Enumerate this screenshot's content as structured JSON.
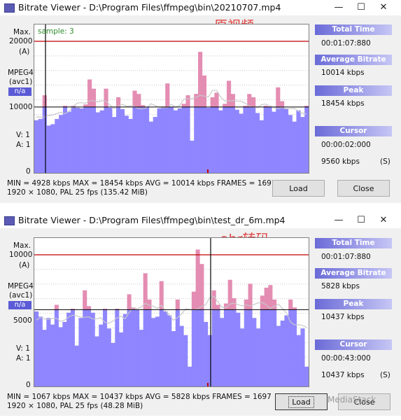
{
  "colors": {
    "bar": "#8f86ff",
    "peak": "#e48db3",
    "avg": "#c8c8c8",
    "maxline": "#c00000",
    "cursor": "#000000"
  },
  "windows": [
    {
      "title": "Bitrate Viewer - D:\\Program Files\\ffmpeg\\bin\\20210707.mp4",
      "overlay": "原视频",
      "sample": "sample: 3",
      "axis": {
        "max_label": "Max.",
        "max_value": "20000",
        "unit": "(A)",
        "codec1": "MPEG4",
        "codec2": "(avc1)",
        "badge": "n/a",
        "mid": "10000",
        "v": "V:  1",
        "a": "A:  1",
        "zero": "0"
      },
      "panel": {
        "total_time_label": "Total Time",
        "total_time": "00:01:07:880",
        "avg_label": "Average Bitrate",
        "avg": "10014 kbps",
        "peak_label": "Peak",
        "peak": "18454 kbps",
        "cursor_label": "Cursor",
        "cursor_time": "00:00:02:000",
        "cursor_rate": "9560 kbps",
        "cursor_unit": "(S)"
      },
      "stats1": "MIN = 4928 kbps  MAX = 18454 kbps  AVG = 10014 kbps  FRAMES = 1697",
      "stats2": "1920 × 1080, PAL 25 fps              (135.42 MiB)",
      "load": "Load",
      "close": "Close",
      "scale_max": 20000,
      "max_kbps": 18454,
      "avg_kbps": 10014,
      "bars": [
        8000,
        8200,
        11800,
        7200,
        7400,
        8200,
        8800,
        10200,
        9300,
        10200,
        9900,
        9800,
        10400,
        14200,
        12800,
        9200,
        9500,
        12800,
        9900,
        8500,
        11500,
        9700,
        8700,
        8200,
        12500,
        12000,
        10300,
        10000,
        7800,
        8500,
        9800,
        10100,
        13600,
        10000,
        9500,
        9800,
        10500,
        11800,
        4900,
        12000,
        18400,
        14800,
        9900,
        11500,
        12200,
        9500,
        10500,
        14000,
        12000,
        9600,
        9000,
        10200,
        12000,
        11500,
        9100,
        8000,
        10200,
        10100,
        9300,
        13000,
        10900,
        9800,
        8800,
        7800,
        9500,
        8500,
        10200
      ]
    },
    {
      "title": "Bitrate Viewer - D:\\Program Files\\ffmpeg\\bin\\test_dr_6m.mp4",
      "overlay": "abr转码",
      "axis": {
        "max_label": "Max.",
        "max_value": "10000",
        "unit": "(A)",
        "codec1": "MPEG4",
        "codec2": "(avc1)",
        "badge": "n/a",
        "mid": "5000",
        "v": "V:  1",
        "a": "A:  1",
        "zero": "0"
      },
      "panel": {
        "total_time_label": "Total Time",
        "total_time": "00:01:07:880",
        "avg_label": "Average Bitrate",
        "avg": "5828 kbps",
        "peak_label": "Peak",
        "peak": "10437 kbps",
        "cursor_label": "Cursor",
        "cursor_time": "00:00:43:000",
        "cursor_rate": "10437 kbps",
        "cursor_unit": "(S)"
      },
      "stats1": "MIN = 1067 kbps  MAX = 10437 kbps  AVG = 5828 kbps  FRAMES = 1697",
      "stats2": "1920 × 1080, PAL 25 fps              (48.28 MiB)",
      "load": "Load",
      "close": "Close",
      "scale_max": 10000,
      "max_kbps": 10437,
      "avg_kbps": 5828,
      "bars": [
        5700,
        5300,
        4300,
        5200,
        4700,
        6200,
        4500,
        4900,
        5600,
        5900,
        3100,
        5200,
        7300,
        6100,
        5600,
        3800,
        4700,
        5900,
        4400,
        3300,
        5900,
        4100,
        5500,
        7000,
        6000,
        5800,
        4300,
        8600,
        6600,
        5200,
        5300,
        8000,
        5700,
        5400,
        4200,
        6600,
        4600,
        3900,
        1500,
        7200,
        10400,
        9300,
        4900,
        3900,
        7300,
        6200,
        5200,
        6300,
        8100,
        6700,
        5600,
        4400,
        6600,
        7800,
        5200,
        4400,
        6900,
        7500,
        7700,
        6600,
        4600,
        5000,
        5400,
        6600,
        6000,
        3900,
        4400,
        1500
      ]
    }
  ],
  "watermark": "MediaStack"
}
